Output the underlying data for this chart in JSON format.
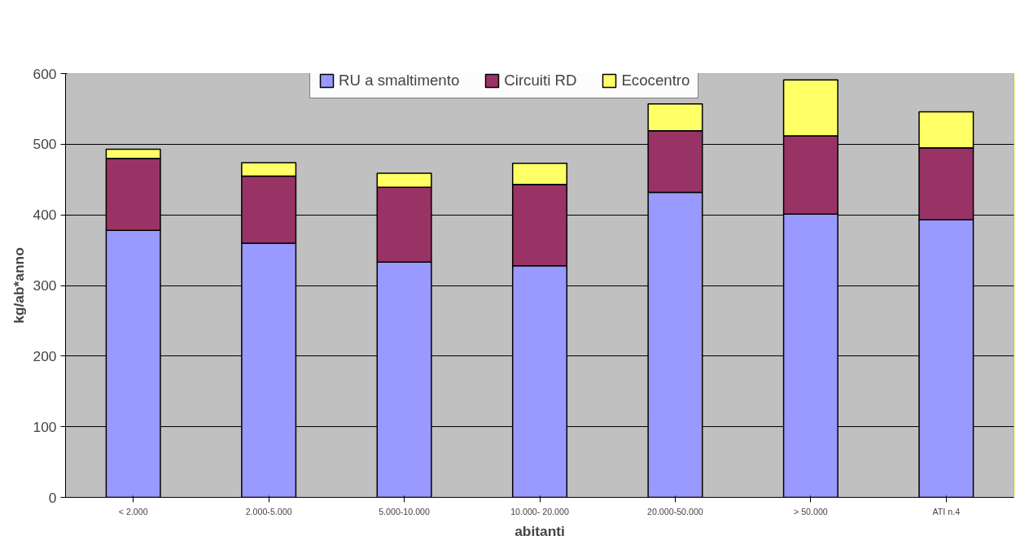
{
  "chart_data": {
    "type": "bar",
    "stacked": true,
    "xlabel": "abitanti",
    "ylabel": "kg/ab*anno",
    "categories": [
      "< 2.000",
      "2.000-5.000",
      "5.000-10.000",
      "10.000- 20.000",
      "20.000-50.000",
      "> 50.000",
      "ATI n.4"
    ],
    "series": [
      {
        "name": "RU a smaltimento",
        "color": "#9999ff",
        "values": [
          378,
          360,
          333,
          328,
          432,
          401,
          393
        ]
      },
      {
        "name": "Circuiti RD",
        "color": "#993366",
        "values": [
          102,
          95,
          106,
          115,
          87,
          111,
          102
        ]
      },
      {
        "name": "Ecocentro",
        "color": "#ffff66",
        "values": [
          13,
          19,
          20,
          30,
          38,
          79,
          51
        ]
      }
    ],
    "ylim": [
      0,
      600
    ],
    "yticks": [
      0,
      100,
      200,
      300,
      400,
      500,
      600
    ],
    "grid": "y",
    "legend": "top"
  }
}
